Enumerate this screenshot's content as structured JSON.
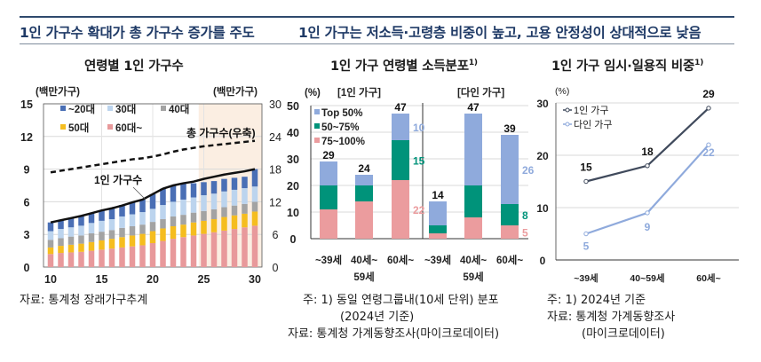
{
  "header": {
    "left": "1인 가구수 확대가 총 가구수 증가를 주도",
    "right": "1인 가구는 저소득·고령층 비중이 높고, 고용 안정성이 상대적으로 낮음"
  },
  "chart_data": [
    {
      "type": "bar",
      "stacked": true,
      "title": "연령별 1인 가구수",
      "ylabel_left": "(백만가구)",
      "ylabel_right": "(백만가구)",
      "ylim": [
        0,
        15
      ],
      "ylim_right": [
        0,
        30
      ],
      "yticks": [
        "0",
        "3",
        "6",
        "9",
        "12",
        "15"
      ],
      "yticks_right": [
        "0",
        "6",
        "12",
        "18",
        "24",
        "30"
      ],
      "xticks": [
        "10",
        "15",
        "20",
        "25",
        "30"
      ],
      "x": [
        10,
        11,
        12,
        13,
        14,
        15,
        16,
        17,
        18,
        19,
        20,
        21,
        22,
        23,
        24,
        25,
        26,
        27,
        28,
        29,
        30
      ],
      "shaded_from": 24.5,
      "legend": [
        "~20대",
        "30대",
        "40대",
        "50대",
        "60대~"
      ],
      "series": [
        {
          "name": "60대~",
          "color": "#e8999b",
          "values": [
            1.2,
            1.3,
            1.35,
            1.4,
            1.5,
            1.6,
            1.7,
            1.8,
            1.9,
            2.0,
            2.2,
            2.4,
            2.6,
            2.75,
            2.9,
            3.05,
            3.2,
            3.35,
            3.5,
            3.65,
            3.8
          ]
        },
        {
          "name": "50대",
          "color": "#f5bd1f",
          "values": [
            0.6,
            0.65,
            0.7,
            0.75,
            0.8,
            0.85,
            0.9,
            0.95,
            1.0,
            1.05,
            1.1,
            1.15,
            1.15,
            1.15,
            1.2,
            1.2,
            1.2,
            1.25,
            1.25,
            1.25,
            1.3
          ]
        },
        {
          "name": "40대",
          "color": "#a3a3a3",
          "values": [
            0.7,
            0.7,
            0.75,
            0.75,
            0.8,
            0.8,
            0.8,
            0.85,
            0.85,
            0.85,
            0.85,
            0.85,
            0.9,
            0.9,
            0.9,
            0.9,
            0.9,
            0.9,
            0.9,
            0.9,
            0.9
          ]
        },
        {
          "name": "30대",
          "color": "#bcd4ee",
          "values": [
            0.8,
            0.85,
            0.85,
            0.9,
            0.95,
            1.0,
            1.0,
            1.05,
            1.1,
            1.15,
            1.2,
            1.3,
            1.35,
            1.4,
            1.4,
            1.45,
            1.45,
            1.45,
            1.45,
            1.45,
            1.4
          ]
        },
        {
          "name": "~20대",
          "color": "#4a6fb5",
          "values": [
            0.8,
            0.8,
            0.85,
            0.9,
            0.9,
            0.95,
            1.0,
            1.05,
            1.1,
            1.15,
            1.35,
            1.5,
            1.5,
            1.5,
            1.3,
            1.2,
            1.15,
            1.15,
            1.1,
            1.05,
            1.6
          ]
        }
      ],
      "line_single": {
        "name": "1인 가구수",
        "label": "1인 가구수",
        "values": [
          4.1,
          4.3,
          4.5,
          4.7,
          4.95,
          5.2,
          5.4,
          5.65,
          5.95,
          6.2,
          6.7,
          7.2,
          7.5,
          7.7,
          7.85,
          8.1,
          8.3,
          8.5,
          8.65,
          8.8,
          9.0
        ]
      },
      "line_total": {
        "name": "총 가구수(우축)",
        "label": "총 가구수(우축)",
        "axis": "right",
        "values": [
          17.4,
          17.7,
          18.0,
          18.3,
          18.6,
          18.9,
          19.2,
          19.5,
          19.8,
          20.0,
          20.3,
          20.7,
          21.2,
          21.6,
          21.9,
          22.2,
          22.4,
          22.6,
          22.8,
          23.0,
          23.2
        ]
      },
      "source": "자료: 통계청 장래가구추계"
    },
    {
      "type": "bar",
      "stacked": true,
      "title": "1인 가구 연령별 소득분포",
      "title_sup": "1)",
      "ylabel": "(%)",
      "ylim": [
        0,
        50
      ],
      "yticks": [
        "0",
        "10",
        "20",
        "30",
        "40",
        "50"
      ],
      "panels": [
        {
          "name": "[1인 가구]",
          "categories": [
            "~39세",
            "40세~\n59세",
            "60세~"
          ],
          "totals": [
            29,
            24,
            47
          ],
          "series": [
            {
              "name": "75~100%",
              "color": "#eb9c9e",
              "values": [
                11,
                14,
                22
              ]
            },
            {
              "name": "50~75%",
              "color": "#00937a",
              "values": [
                9,
                6,
                15
              ]
            },
            {
              "name": "Top 50%",
              "color": "#8faadc",
              "values": [
                9,
                4,
                10
              ]
            }
          ],
          "side_labels": [
            {
              "series": "Top 50%",
              "text": "10"
            },
            {
              "series": "50~75%",
              "text": "15"
            },
            {
              "series": "75~100%",
              "text": "22"
            }
          ]
        },
        {
          "name": "[다인 가구]",
          "categories": [
            "~39세",
            "40세~\n59세",
            "60세~"
          ],
          "totals": [
            14,
            47,
            39
          ],
          "series": [
            {
              "name": "75~100%",
              "color": "#eb9c9e",
              "values": [
                2,
                8,
                5
              ]
            },
            {
              "name": "50~75%",
              "color": "#00937a",
              "values": [
                3,
                12,
                8
              ]
            },
            {
              "name": "Top 50%",
              "color": "#8faadc",
              "values": [
                9,
                27,
                26
              ]
            }
          ],
          "side_labels": [
            {
              "series": "Top 50%",
              "text": "26"
            },
            {
              "series": "50~75%",
              "text": "8"
            },
            {
              "series": "75~100%",
              "text": "5"
            }
          ]
        }
      ],
      "legend": [
        "Top 50%",
        "50~75%",
        "75~100%"
      ],
      "notes": [
        "주: 1) 동일 연령그룹내(10세 단위) 분포",
        "(2024년 기준)",
        "자료: 통계청 가계동향조사(마이크로데이터)"
      ]
    },
    {
      "type": "line",
      "title": "1인 가구 임시·일용직 비중",
      "title_sup": "1)",
      "ylabel": "(%)",
      "ylim": [
        0,
        30
      ],
      "yticks": [
        "0",
        "10",
        "20",
        "30"
      ],
      "categories": [
        "~39세",
        "40~59세",
        "60세~"
      ],
      "series": [
        {
          "name": "1인 가구",
          "color": "#404a5c",
          "values": [
            15,
            18,
            29
          ],
          "labels": [
            "15",
            "18",
            "29"
          ]
        },
        {
          "name": "다인 가구",
          "color": "#8faadc",
          "values": [
            5,
            9,
            22
          ],
          "labels": [
            "5",
            "9",
            "22"
          ]
        }
      ],
      "notes": [
        "주: 1) 2024년 기준",
        "자료: 통계청 가계동향조사",
        "(마이크로데이터)"
      ]
    }
  ]
}
